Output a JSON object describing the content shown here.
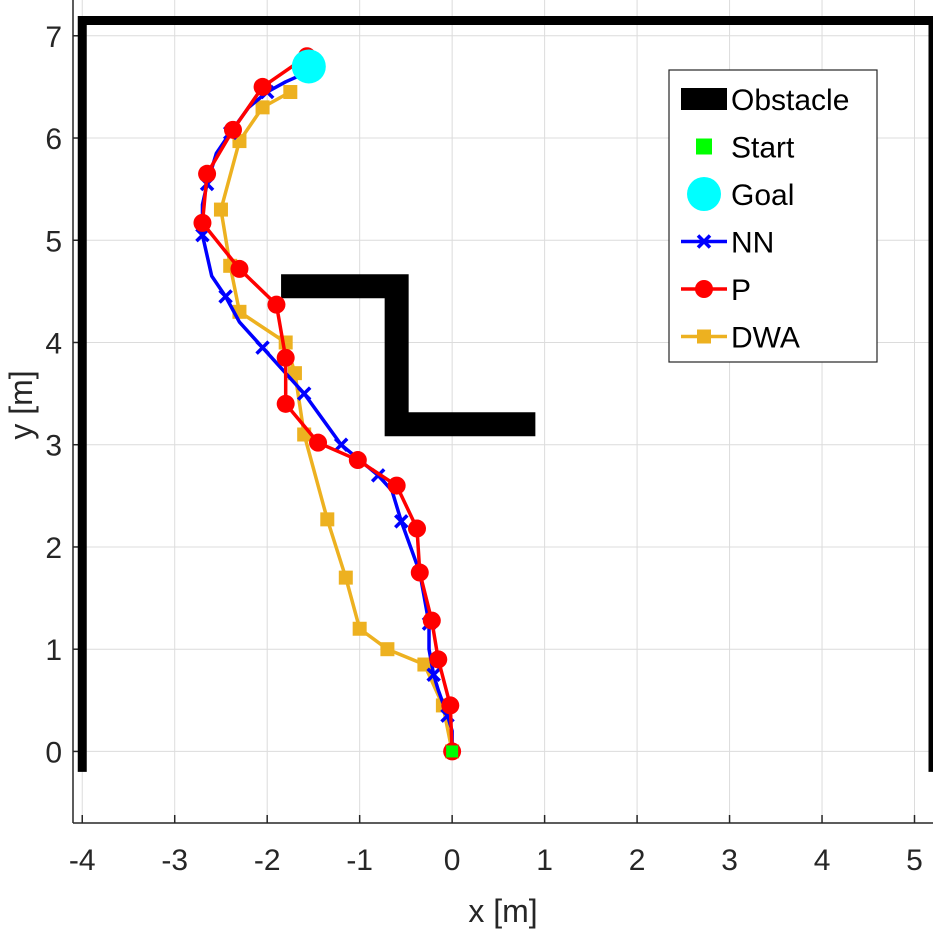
{
  "chart_data": {
    "type": "line",
    "title": "",
    "xlabel": "x [m]",
    "ylabel": "y [m]",
    "xlim": [
      -4.1,
      5.2
    ],
    "ylim": [
      -0.7,
      7.35
    ],
    "xticks": [
      "-4",
      "-3",
      "-2",
      "-1",
      "0",
      "1",
      "2",
      "3",
      "4",
      "5"
    ],
    "yticks": [
      "0",
      "1",
      "2",
      "3",
      "4",
      "5",
      "6",
      "7"
    ],
    "grid": true,
    "legend_position": "top-right",
    "obstacles": [
      {
        "name": "boundary",
        "points": [
          [
            -4.0,
            -0.2
          ],
          [
            -4.0,
            7.15
          ],
          [
            5.2,
            7.15
          ],
          [
            5.2,
            -0.2
          ]
        ]
      },
      {
        "name": "z-obstacle",
        "points": [
          [
            -1.85,
            4.55
          ],
          [
            -0.6,
            4.55
          ],
          [
            -0.6,
            3.2
          ],
          [
            0.9,
            3.2
          ]
        ]
      }
    ],
    "start": {
      "label": "Start",
      "x": 0.0,
      "y": 0.0
    },
    "goal": {
      "label": "Goal",
      "x": -1.55,
      "y": 6.7
    },
    "series": [
      {
        "name": "NN",
        "color": "#0000ff",
        "marker": "x",
        "x": [
          0.0,
          0.0,
          -0.05,
          -0.15,
          -0.2,
          -0.25,
          -0.25,
          -0.3,
          -0.35,
          -0.45,
          -0.55,
          -0.65,
          -0.8,
          -1.0,
          -1.2,
          -1.4,
          -1.6,
          -1.85,
          -2.05,
          -2.3,
          -2.45,
          -2.6,
          -2.7,
          -2.7,
          -2.65,
          -2.55,
          -2.4,
          -2.2,
          -2.0,
          -1.8,
          -1.55
        ],
        "y": [
          0.0,
          0.2,
          0.35,
          0.6,
          0.75,
          1.0,
          1.25,
          1.5,
          1.75,
          2.0,
          2.25,
          2.55,
          2.7,
          2.85,
          3.0,
          3.25,
          3.5,
          3.75,
          3.95,
          4.2,
          4.45,
          4.65,
          5.05,
          5.35,
          5.55,
          5.85,
          6.05,
          6.3,
          6.45,
          6.55,
          6.65
        ]
      },
      {
        "name": "P",
        "color": "#ff0000",
        "marker": "o",
        "x": [
          0.0,
          -0.02,
          -0.15,
          -0.22,
          -0.35,
          -0.38,
          -0.6,
          -1.02,
          -1.45,
          -1.8,
          -1.8,
          -1.9,
          -2.3,
          -2.7,
          -2.65,
          -2.37,
          -2.05,
          -1.57
        ],
        "y": [
          0.0,
          0.45,
          0.9,
          1.28,
          1.75,
          2.18,
          2.6,
          2.85,
          3.02,
          3.4,
          3.85,
          4.37,
          4.72,
          5.17,
          5.65,
          6.08,
          6.5,
          6.8
        ]
      },
      {
        "name": "DWA",
        "color": "#edb120",
        "marker": "s",
        "x": [
          0.0,
          -0.1,
          -0.3,
          -0.7,
          -1.0,
          -1.15,
          -1.35,
          -1.6,
          -1.7,
          -1.8,
          -2.3,
          -2.4,
          -2.5,
          -2.3,
          -2.05,
          -1.75
        ],
        "y": [
          0.0,
          0.45,
          0.85,
          1.0,
          1.2,
          1.7,
          2.27,
          3.1,
          3.7,
          4.0,
          4.3,
          4.75,
          5.3,
          5.97,
          6.3,
          6.45
        ]
      }
    ],
    "legend": [
      {
        "label": "Obstacle",
        "symbol": "obstacle"
      },
      {
        "label": "Start",
        "symbol": "start"
      },
      {
        "label": "Goal",
        "symbol": "goal"
      },
      {
        "label": "NN",
        "symbol": "NN"
      },
      {
        "label": "P",
        "symbol": "P"
      },
      {
        "label": "DWA",
        "symbol": "DWA"
      }
    ],
    "colors": {
      "obstacle": "#000000",
      "start": "#00ff00",
      "goal": "#00ffff",
      "grid": "#dcdcdc",
      "axes": "#262626"
    }
  }
}
